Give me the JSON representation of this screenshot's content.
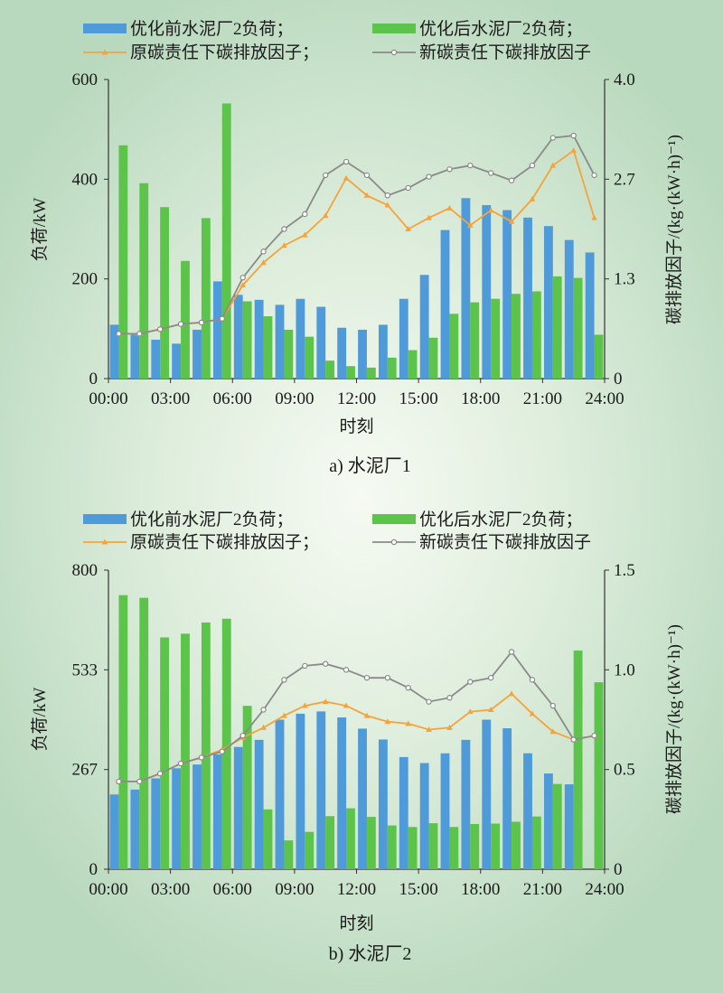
{
  "charts": [
    {
      "caption": "a) 水泥厂1",
      "legend": {
        "before": "优化前水泥厂2负荷；",
        "after": "优化后水泥厂2负荷；",
        "orig": "原碳责任下碳排放因子；",
        "new": "新碳责任下碳排放因子"
      },
      "xlabel": "时刻",
      "ylabel_left": "负荷/kW",
      "ylabel_right": "碳排放因子/(kg·(kW·h)⁻¹)",
      "left_ticks": [
        "0",
        "200",
        "400",
        "600"
      ],
      "right_ticks": [
        "0",
        "1.3",
        "2.7",
        "4.0"
      ],
      "x_ticks": [
        "00:00",
        "03:00",
        "06:00",
        "09:00",
        "12:00",
        "15:00",
        "18:00",
        "21:00",
        "24:00"
      ]
    },
    {
      "caption": "b) 水泥厂2",
      "legend": {
        "before": "优化前水泥厂2负荷；",
        "after": "优化后水泥厂2负荷；",
        "orig": "原碳责任下碳排放因子；",
        "new": "新碳责任下碳排放因子"
      },
      "xlabel": "时刻",
      "ylabel_left": "负荷/kW",
      "ylabel_right": "碳排放因子/(kg·(kW·h)⁻¹)",
      "left_ticks": [
        "0",
        "267",
        "533",
        "800"
      ],
      "right_ticks": [
        "0",
        "0.5",
        "1.0",
        "1.5"
      ],
      "x_ticks": [
        "00:00",
        "03:00",
        "06:00",
        "09:00",
        "12:00",
        "15:00",
        "18:00",
        "21:00",
        "24:00"
      ]
    }
  ],
  "chart_data": [
    {
      "type": "bar",
      "title": "a) 水泥厂1",
      "xlabel": "时刻",
      "ylabel": "负荷/kW",
      "y2label": "碳排放因子/(kg·(kW·h)⁻¹)",
      "ylim": [
        0,
        600
      ],
      "y2lim": [
        0,
        4.0
      ],
      "categories": [
        1,
        2,
        3,
        4,
        5,
        6,
        7,
        8,
        9,
        10,
        11,
        12,
        13,
        14,
        15,
        16,
        17,
        18,
        19,
        20,
        21,
        22,
        23,
        24
      ],
      "series": [
        {
          "name": "优化前水泥厂2负荷",
          "axis": "left",
          "color": "#4f9ad8",
          "values": [
            108,
            88,
            78,
            70,
            98,
            195,
            168,
            158,
            148,
            160,
            144,
            102,
            98,
            108,
            160,
            208,
            298,
            362,
            348,
            338,
            323,
            306,
            278,
            253
          ]
        },
        {
          "name": "优化后水泥厂2负荷",
          "axis": "left",
          "color": "#5cc44a",
          "values": [
            468,
            392,
            344,
            236,
            322,
            552,
            155,
            125,
            98,
            84,
            36,
            25,
            22,
            42,
            57,
            82,
            130,
            153,
            160,
            170,
            175,
            205,
            202,
            88
          ]
        },
        {
          "name": "原碳责任下碳排放因子",
          "axis": "right",
          "type": "line",
          "color": "#f5a33a",
          "values": [
            0.6,
            0.6,
            0.66,
            0.73,
            0.75,
            0.8,
            1.25,
            1.55,
            1.78,
            1.92,
            2.18,
            2.68,
            2.45,
            2.32,
            2.0,
            2.15,
            2.28,
            2.05,
            2.25,
            2.1,
            2.4,
            2.85,
            3.05,
            2.15
          ]
        },
        {
          "name": "新碳责任下碳排放因子",
          "axis": "right",
          "type": "line",
          "color": "#8a8a8a",
          "values": [
            0.6,
            0.6,
            0.66,
            0.73,
            0.75,
            0.8,
            1.35,
            1.7,
            2.0,
            2.2,
            2.72,
            2.9,
            2.72,
            2.45,
            2.55,
            2.7,
            2.8,
            2.85,
            2.75,
            2.65,
            2.85,
            3.22,
            3.25,
            2.72
          ]
        }
      ]
    },
    {
      "type": "bar",
      "title": "b) 水泥厂2",
      "xlabel": "时刻",
      "ylabel": "负荷/kW",
      "y2label": "碳排放因子/(kg·(kW·h)⁻¹)",
      "ylim": [
        0,
        800
      ],
      "y2lim": [
        0,
        1.5
      ],
      "categories": [
        1,
        2,
        3,
        4,
        5,
        6,
        7,
        8,
        9,
        10,
        11,
        12,
        13,
        14,
        15,
        16,
        17,
        18,
        19,
        20,
        21,
        22,
        23,
        24
      ],
      "series": [
        {
          "name": "优化前水泥厂2负荷",
          "axis": "left",
          "color": "#4f9ad8",
          "values": [
            200,
            213,
            243,
            270,
            280,
            307,
            327,
            346,
            400,
            416,
            422,
            406,
            376,
            347,
            300,
            284,
            310,
            346,
            400,
            377,
            310,
            256,
            227,
            0
          ]
        },
        {
          "name": "优化后水泥厂2负荷",
          "axis": "left",
          "color": "#5cc44a",
          "values": [
            733,
            726,
            620,
            630,
            660,
            670,
            437,
            160,
            77,
            100,
            142,
            163,
            140,
            117,
            113,
            123,
            113,
            121,
            122,
            127,
            141,
            228,
            585,
            500
          ]
        },
        {
          "name": "原碳责任下碳排放因子",
          "axis": "right",
          "type": "line",
          "color": "#f5a33a",
          "values": [
            0.44,
            0.44,
            0.48,
            0.53,
            0.56,
            0.6,
            0.66,
            0.71,
            0.77,
            0.82,
            0.84,
            0.82,
            0.77,
            0.74,
            0.73,
            0.7,
            0.71,
            0.79,
            0.8,
            0.88,
            0.78,
            0.69,
            0.65,
            0.67
          ]
        },
        {
          "name": "新碳责任下碳排放因子",
          "axis": "right",
          "type": "line",
          "color": "#8a8a8a",
          "values": [
            0.44,
            0.44,
            0.48,
            0.53,
            0.56,
            0.59,
            0.67,
            0.8,
            0.95,
            1.02,
            1.03,
            1.0,
            0.96,
            0.96,
            0.91,
            0.84,
            0.86,
            0.94,
            0.96,
            1.09,
            0.95,
            0.82,
            0.65,
            0.67
          ]
        }
      ]
    }
  ]
}
